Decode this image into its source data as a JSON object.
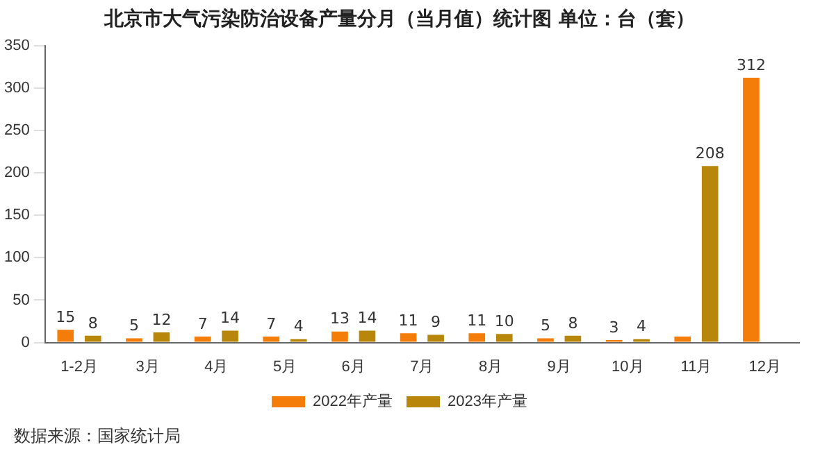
{
  "chart_data": {
    "type": "bar",
    "title": "北京市大气污染防治设备产量分月（当月值）统计图 单位：台（套）",
    "categories": [
      "1-2月",
      "3月",
      "4月",
      "5月",
      "6月",
      "7月",
      "8月",
      "9月",
      "10月",
      "11月",
      "12月"
    ],
    "series": [
      {
        "name": "2022年产量",
        "color": "#f47c08",
        "values": [
          15,
          5,
          7,
          7,
          13,
          11,
          11,
          5,
          3,
          7,
          312
        ],
        "value_labels": [
          "15",
          "5",
          "7",
          "7",
          "13",
          "11",
          "11",
          "5",
          "3",
          null,
          "312"
        ]
      },
      {
        "name": "2023年产量",
        "color": "#b8860b",
        "values": [
          8,
          12,
          14,
          4,
          14,
          9,
          10,
          8,
          4,
          208,
          null
        ],
        "value_labels": [
          "8",
          "12",
          "14",
          "4",
          "14",
          "9",
          "10",
          "8",
          "4",
          "208",
          null
        ]
      }
    ],
    "ylim": [
      0,
      350
    ],
    "yticks": [
      0,
      50,
      100,
      150,
      200,
      250,
      300,
      350
    ],
    "grid": false,
    "legend": "bottom",
    "annotations": [
      "数据来源：国家统计局"
    ]
  }
}
